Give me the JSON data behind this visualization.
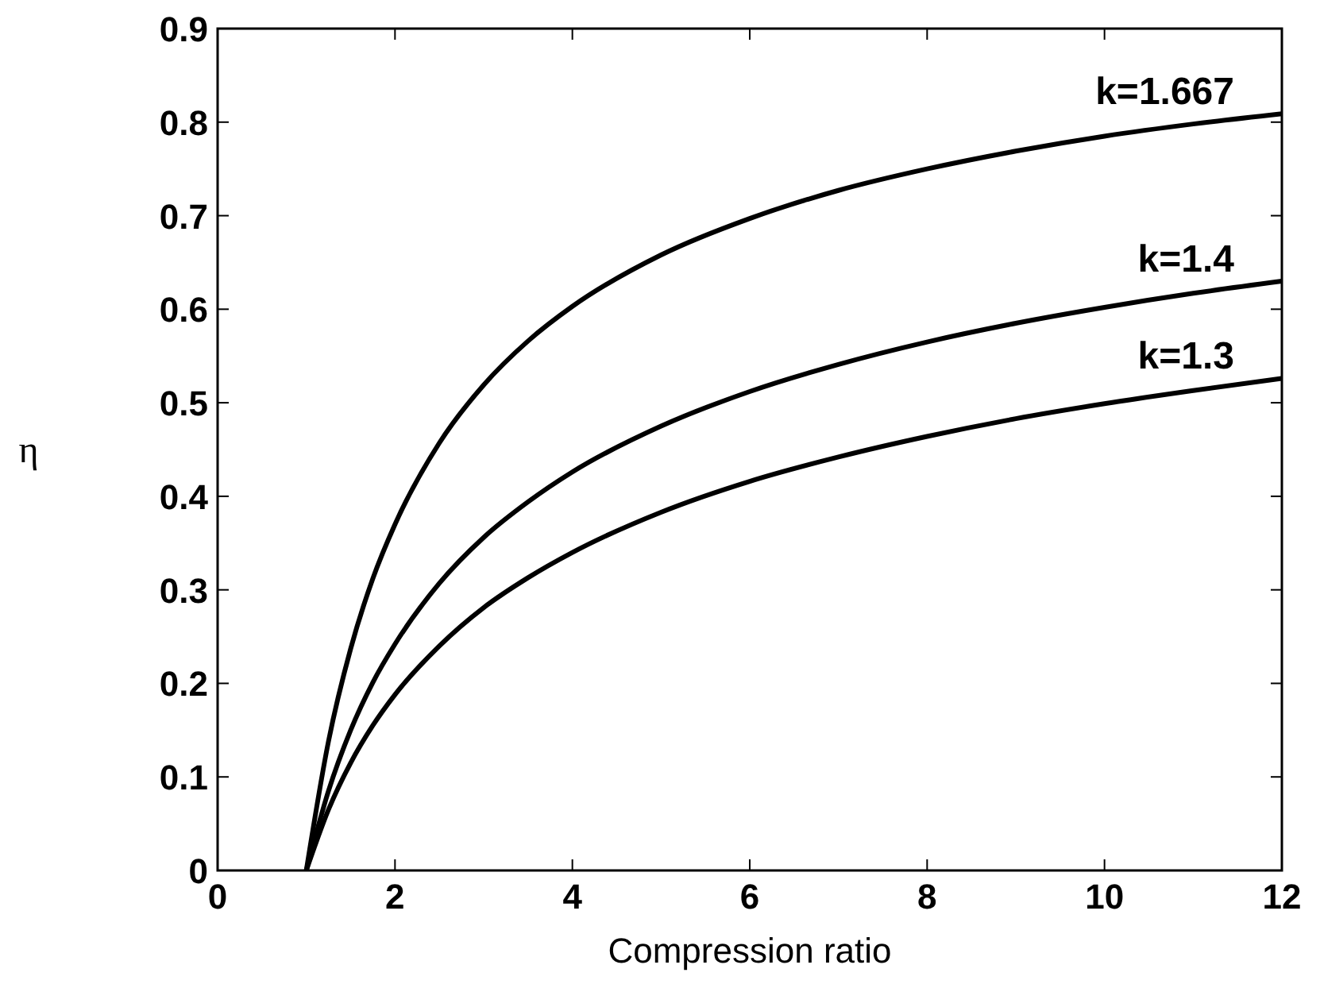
{
  "chart_data": {
    "type": "line",
    "xlabel": "Compression ratio",
    "ylabel": "η",
    "x": [
      1,
      1.25,
      1.5,
      1.75,
      2,
      2.5,
      3,
      3.5,
      4,
      5,
      6,
      7,
      8,
      9,
      10,
      11,
      12
    ],
    "series": [
      {
        "name": "k=1.667",
        "color": "#000000",
        "values": [
          0,
          0.138,
          0.237,
          0.312,
          0.37,
          0.457,
          0.519,
          0.566,
          0.603,
          0.658,
          0.697,
          0.727,
          0.75,
          0.769,
          0.785,
          0.798,
          0.809
        ]
      },
      {
        "name": "k=1.4",
        "color": "#000000",
        "values": [
          0,
          0.085,
          0.15,
          0.201,
          0.242,
          0.307,
          0.356,
          0.394,
          0.426,
          0.475,
          0.512,
          0.541,
          0.565,
          0.585,
          0.602,
          0.617,
          0.63
        ]
      },
      {
        "name": "k=1.3",
        "color": "#000000",
        "values": [
          0,
          0.065,
          0.115,
          0.155,
          0.188,
          0.24,
          0.281,
          0.313,
          0.34,
          0.383,
          0.416,
          0.442,
          0.464,
          0.483,
          0.499,
          0.513,
          0.526
        ]
      }
    ],
    "xlim": [
      0,
      12
    ],
    "xticks": [
      0,
      2,
      4,
      6,
      8,
      10,
      12
    ],
    "ylim": [
      0,
      0.9
    ],
    "yticks": [
      0,
      0.1,
      0.2,
      0.3,
      0.4,
      0.5,
      0.6,
      0.7,
      0.8,
      0.9
    ],
    "grid": false,
    "marker": "none",
    "line_style": "solid"
  }
}
